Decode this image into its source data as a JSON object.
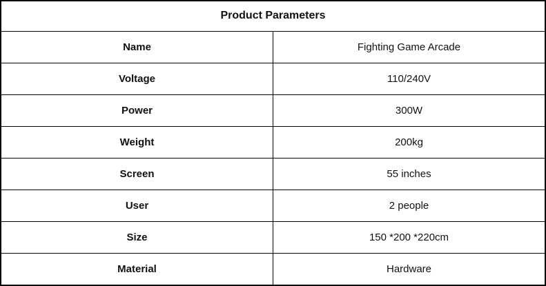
{
  "table": {
    "title": "Product Parameters",
    "rows": [
      {
        "label": "Name",
        "value": "Fighting Game Arcade"
      },
      {
        "label": "Voltage",
        "value": "110/240V"
      },
      {
        "label": "Power",
        "value": "300W"
      },
      {
        "label": "Weight",
        "value": "200kg"
      },
      {
        "label": "Screen",
        "value": "55 inches"
      },
      {
        "label": "User",
        "value": "2 people"
      },
      {
        "label": "Size",
        "value": "150 *200 *220cm"
      },
      {
        "label": "Material",
        "value": "Hardware"
      }
    ]
  }
}
